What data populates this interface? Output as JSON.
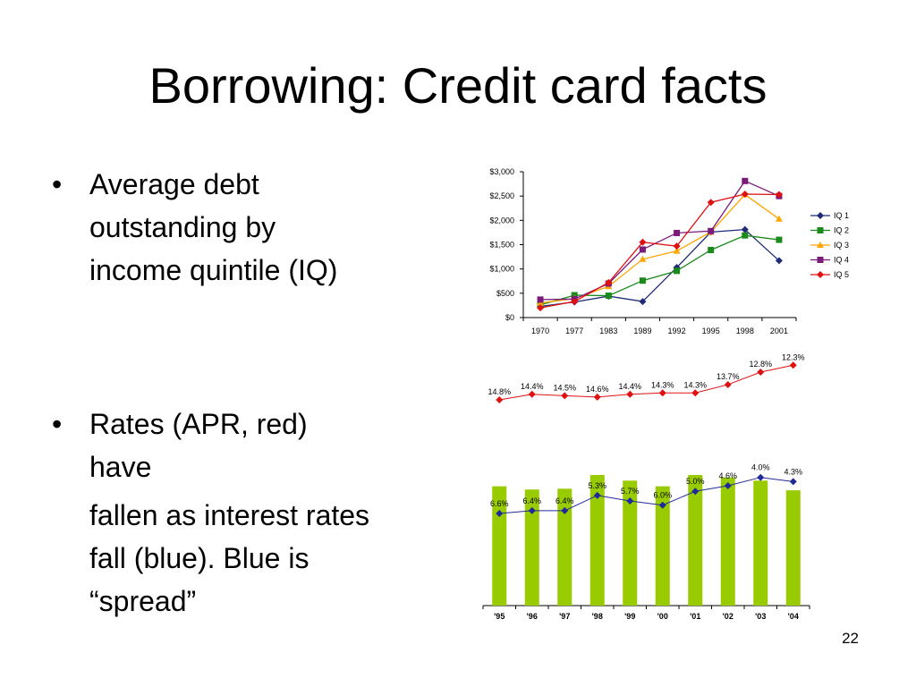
{
  "slide": {
    "title": "Borrowing: Credit card facts",
    "bullet1": {
      "lines": [
        "Average debt",
        "outstanding by",
        "income quintile (IQ)"
      ]
    },
    "bullet2": {
      "lines": [
        "Rates (APR, red)",
        "have"
      ],
      "cont": [
        "fallen as interest rates",
        "fall (blue). Blue is",
        "“spread”"
      ]
    },
    "bullet_glyph": "•",
    "page_number": "22"
  },
  "chart_data": [
    {
      "type": "line",
      "title": "",
      "xlabel": "",
      "ylabel": "",
      "categories": [
        "1970",
        "1977",
        "1983",
        "1989",
        "1992",
        "1995",
        "1998",
        "2001"
      ],
      "y_ticks": [
        "$3,000",
        "$2,500",
        "$2,000",
        "$1,500",
        "$1,000",
        "$500",
        "$0"
      ],
      "ylim": [
        0,
        3000
      ],
      "legend_position": "right",
      "grid": false,
      "series": [
        {
          "name": "IQ 1",
          "color": "#1f2a78",
          "marker": "diamond",
          "values": [
            230,
            320,
            440,
            330,
            1030,
            1760,
            1810,
            1170
          ]
        },
        {
          "name": "IQ 2",
          "color": "#1a8a1a",
          "marker": "square",
          "values": [
            260,
            460,
            450,
            760,
            960,
            1390,
            1690,
            1600
          ]
        },
        {
          "name": "IQ 3",
          "color": "#ffa500",
          "marker": "triangle",
          "values": [
            300,
            390,
            640,
            1200,
            1370,
            1760,
            2530,
            2030
          ]
        },
        {
          "name": "IQ 4",
          "color": "#7a1a7a",
          "marker": "square",
          "values": [
            370,
            380,
            700,
            1400,
            1740,
            1780,
            2810,
            2500
          ]
        },
        {
          "name": "IQ 5",
          "color": "#e01010",
          "marker": "diamond",
          "values": [
            200,
            330,
            720,
            1550,
            1470,
            2370,
            2540,
            2530
          ]
        }
      ]
    },
    {
      "type": "bar",
      "title": "",
      "categories": [
        "'95",
        "'96",
        "'97",
        "'98",
        "'99",
        "'00",
        "'01",
        "'02",
        "'03",
        "'04"
      ],
      "bar_color": "#99cc00",
      "bar_values": [
        14.8,
        14.4,
        14.5,
        16.2,
        15.5,
        14.8,
        16.2,
        15.9,
        15.5,
        14.3
      ],
      "series": [
        {
          "color": "#e01010",
          "values": [
            14.8,
            14.4,
            14.5,
            14.6,
            14.4,
            14.3,
            14.3,
            13.7,
            12.8,
            12.3
          ],
          "labels": [
            "14.8%",
            "14.4%",
            "14.5%",
            "14.6%",
            "14.4%",
            "14.3%",
            "14.3%",
            "13.7%",
            "12.8%",
            "12.3%"
          ]
        },
        {
          "color": "#1f2a9a",
          "values": [
            6.6,
            6.4,
            6.4,
            5.3,
            5.7,
            6.0,
            5.0,
            4.6,
            4.0,
            4.3
          ],
          "labels": [
            "6.6%",
            "6.4%",
            "6.4%",
            "5.3%",
            "5.7%",
            "6.0%",
            "5.0%",
            "4.6%",
            "4.0%",
            "4.3%"
          ]
        }
      ]
    }
  ]
}
